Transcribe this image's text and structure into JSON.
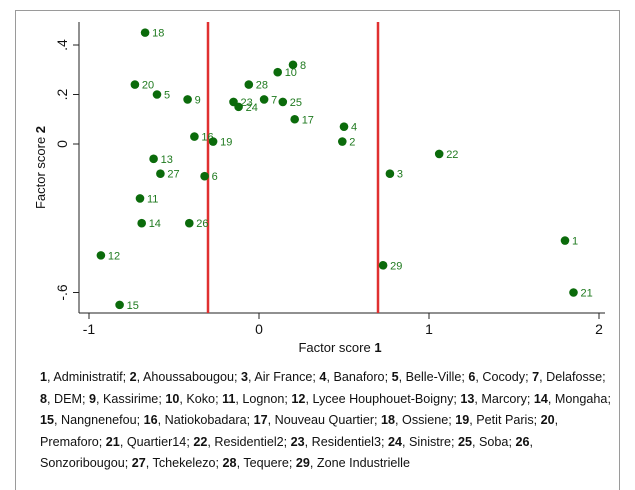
{
  "chart_data": {
    "type": "scatter",
    "xlabel": "Factor score",
    "xlabel_bold": "1",
    "ylabel": "Factor score",
    "ylabel_bold": "2",
    "xlim": [
      -1.1,
      2.05
    ],
    "ylim": [
      -0.67,
      0.47
    ],
    "xticks": [
      -1,
      0,
      1,
      2
    ],
    "yticks": [
      0.4,
      0.2,
      0,
      -0.6
    ],
    "ytick_labels": [
      ".4",
      ".2",
      "0",
      "-.6"
    ],
    "vlines": [
      -0.3,
      0.7
    ],
    "vline_color": "#e03030",
    "point_color": "#0b6b0b",
    "points": [
      {
        "label": "1",
        "x": 1.8,
        "y": -0.39
      },
      {
        "label": "2",
        "x": 0.49,
        "y": 0.01
      },
      {
        "label": "3",
        "x": 0.77,
        "y": -0.12
      },
      {
        "label": "4",
        "x": 0.5,
        "y": 0.07
      },
      {
        "label": "5",
        "x": -0.6,
        "y": 0.2
      },
      {
        "label": "6",
        "x": -0.32,
        "y": -0.13
      },
      {
        "label": "7",
        "x": 0.03,
        "y": 0.18
      },
      {
        "label": "8",
        "x": 0.2,
        "y": 0.32
      },
      {
        "label": "9",
        "x": -0.42,
        "y": 0.18
      },
      {
        "label": "10",
        "x": 0.11,
        "y": 0.29
      },
      {
        "label": "11",
        "x": -0.7,
        "y": -0.22
      },
      {
        "label": "12",
        "x": -0.93,
        "y": -0.45
      },
      {
        "label": "13",
        "x": -0.62,
        "y": -0.06
      },
      {
        "label": "14",
        "x": -0.69,
        "y": -0.32
      },
      {
        "label": "15",
        "x": -0.82,
        "y": -0.65
      },
      {
        "label": "16",
        "x": -0.38,
        "y": 0.03
      },
      {
        "label": "17",
        "x": 0.21,
        "y": 0.1
      },
      {
        "label": "18",
        "x": -0.67,
        "y": 0.45
      },
      {
        "label": "19",
        "x": -0.27,
        "y": 0.01
      },
      {
        "label": "20",
        "x": -0.73,
        "y": 0.24
      },
      {
        "label": "21",
        "x": 1.85,
        "y": -0.6
      },
      {
        "label": "22",
        "x": 1.06,
        "y": -0.04
      },
      {
        "label": "23",
        "x": -0.15,
        "y": 0.17
      },
      {
        "label": "24",
        "x": -0.12,
        "y": 0.15
      },
      {
        "label": "25",
        "x": 0.14,
        "y": 0.17
      },
      {
        "label": "26",
        "x": -0.41,
        "y": -0.32
      },
      {
        "label": "27",
        "x": -0.58,
        "y": -0.12
      },
      {
        "label": "28",
        "x": -0.06,
        "y": 0.24
      },
      {
        "label": "29",
        "x": 0.73,
        "y": -0.49
      }
    ]
  },
  "legend_items": [
    {
      "num": "1",
      "name": "Administratif"
    },
    {
      "num": "2",
      "name": "Ahoussabougou"
    },
    {
      "num": "3",
      "name": "Air France"
    },
    {
      "num": "4",
      "name": "Banaforo"
    },
    {
      "num": "5",
      "name": "Belle-Ville"
    },
    {
      "num": "6",
      "name": "Cocody"
    },
    {
      "num": "7",
      "name": "Delafosse"
    },
    {
      "num": "8",
      "name": "DEM"
    },
    {
      "num": "9",
      "name": "Kassirime"
    },
    {
      "num": "10",
      "name": "Koko"
    },
    {
      "num": "11",
      "name": "Lognon"
    },
    {
      "num": "12",
      "name": "Lycee Houphouet-Boigny"
    },
    {
      "num": "13",
      "name": "Marcory"
    },
    {
      "num": "14",
      "name": "Mongaha"
    },
    {
      "num": "15",
      "name": "Nangnenefou"
    },
    {
      "num": "16",
      "name": "Natiokobadara"
    },
    {
      "num": "17",
      "name": "Nouveau Quartier"
    },
    {
      "num": "18",
      "name": "Ossiene"
    },
    {
      "num": "19",
      "name": "Petit Paris"
    },
    {
      "num": "20",
      "name": "Premaforo"
    },
    {
      "num": "21",
      "name": "Quartier14"
    },
    {
      "num": "22",
      "name": "Residentiel2"
    },
    {
      "num": "23",
      "name": "Residentiel3"
    },
    {
      "num": "24",
      "name": "Sinistre"
    },
    {
      "num": "25",
      "name": "Soba"
    },
    {
      "num": "26",
      "name": "Sonzoribougou"
    },
    {
      "num": "27",
      "name": "Tchekelezo"
    },
    {
      "num": "28",
      "name": "Tequere"
    },
    {
      "num": "29",
      "name": "Zone Industrielle"
    }
  ]
}
